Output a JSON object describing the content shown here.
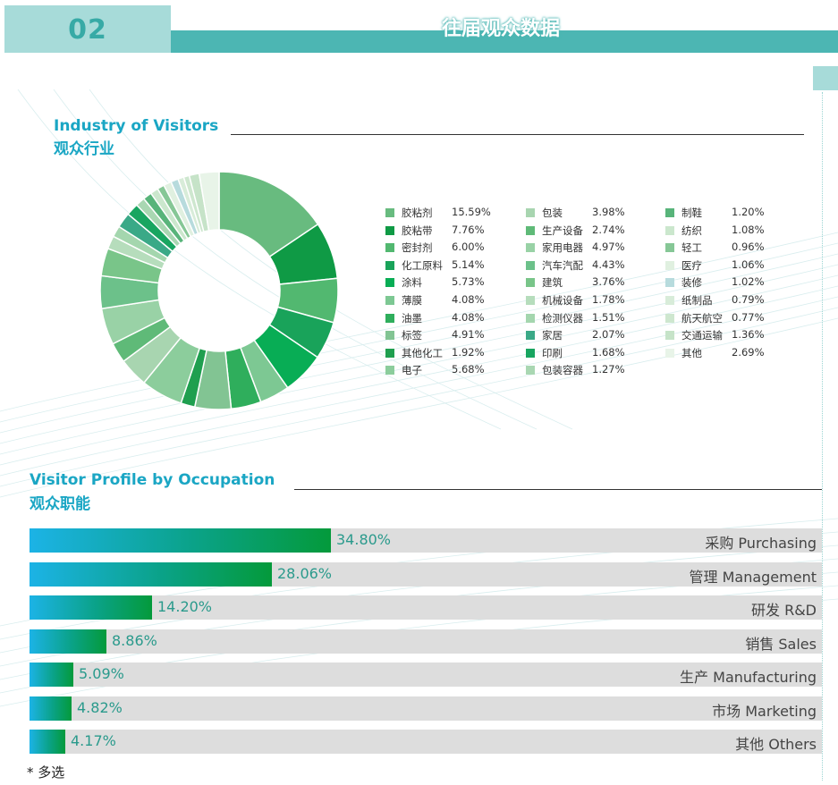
{
  "header": {
    "number": "02",
    "title": "往届观众数据"
  },
  "industry": {
    "title_en": "Industry of Visitors",
    "title_cn": "观众行业"
  },
  "occupation": {
    "title_en": "Visitor Profile by Occupation",
    "title_cn": "观众职能"
  },
  "footnote": "* 多选",
  "chart_data": [
    {
      "type": "pie",
      "title": "Industry of Visitors 观众行业",
      "categories": [
        "胶粘剂",
        "胶粘带",
        "密封剂",
        "化工原料",
        "涂料",
        "薄膜",
        "油墨",
        "标签",
        "其他化工",
        "电子",
        "包装",
        "生产设备",
        "家用电器",
        "汽车汽配",
        "建筑",
        "机械设备",
        "检测仪器",
        "家居",
        "印刷",
        "包装容器",
        "制鞋",
        "纺织",
        "轻工",
        "医疗",
        "装修",
        "纸制品",
        "航天航空",
        "交通运输",
        "其他"
      ],
      "values": [
        15.59,
        7.76,
        6.0,
        5.14,
        5.73,
        4.08,
        4.08,
        4.91,
        1.92,
        5.68,
        3.98,
        2.74,
        4.97,
        4.43,
        3.76,
        1.78,
        1.51,
        2.07,
        1.68,
        1.27,
        1.2,
        1.08,
        0.96,
        1.06,
        1.02,
        0.79,
        0.77,
        1.36,
        2.69
      ],
      "labels": [
        "15.59%",
        "7.76%",
        "6.00%",
        "5.14%",
        "5.73%",
        "4.08%",
        "4.08%",
        "4.91%",
        "1.92%",
        "5.68%",
        "3.98%",
        "2.74%",
        "4.97%",
        "4.43%",
        "3.76%",
        "1.78%",
        "1.51%",
        "2.07%",
        "1.68%",
        "1.27%",
        "1.20%",
        "1.08%",
        "0.96%",
        "1.06%",
        "1.02%",
        "0.79%",
        "0.77%",
        "1.36%",
        "2.69%"
      ],
      "colors": [
        "#68bb7f",
        "#0f9a45",
        "#52b870",
        "#19a35a",
        "#08ad55",
        "#7dc893",
        "#2fae5c",
        "#82c493",
        "#1f9f4f",
        "#8ccd9c",
        "#a8d5b0",
        "#5fba78",
        "#99d2a6",
        "#6cc18a",
        "#79c589",
        "#b6ddbc",
        "#a4d6ae",
        "#3aa987",
        "#18a560",
        "#a9d7b2",
        "#58b47a",
        "#cbe7cd",
        "#86c796",
        "#e0f0e0",
        "#b7dbdd",
        "#d8ecd9",
        "#cee7cf",
        "#c6e3c8",
        "#e8f4e8"
      ],
      "legend": "right",
      "donut": true
    },
    {
      "type": "bar",
      "orientation": "horizontal",
      "title": "Visitor Profile by Occupation 观众职能",
      "categories": [
        "采购 Purchasing",
        "管理 Management",
        "研发 R&D",
        "销售 Sales",
        "生产 Manufacturing",
        "市场 Marketing",
        "其他 Others"
      ],
      "values": [
        34.8,
        28.06,
        14.2,
        8.86,
        5.09,
        4.82,
        4.17
      ],
      "labels": [
        "34.80%",
        "28.06%",
        "14.20%",
        "8.86%",
        "5.09%",
        "4.82%",
        "4.17%"
      ],
      "xlim": [
        0,
        91.6
      ]
    }
  ]
}
